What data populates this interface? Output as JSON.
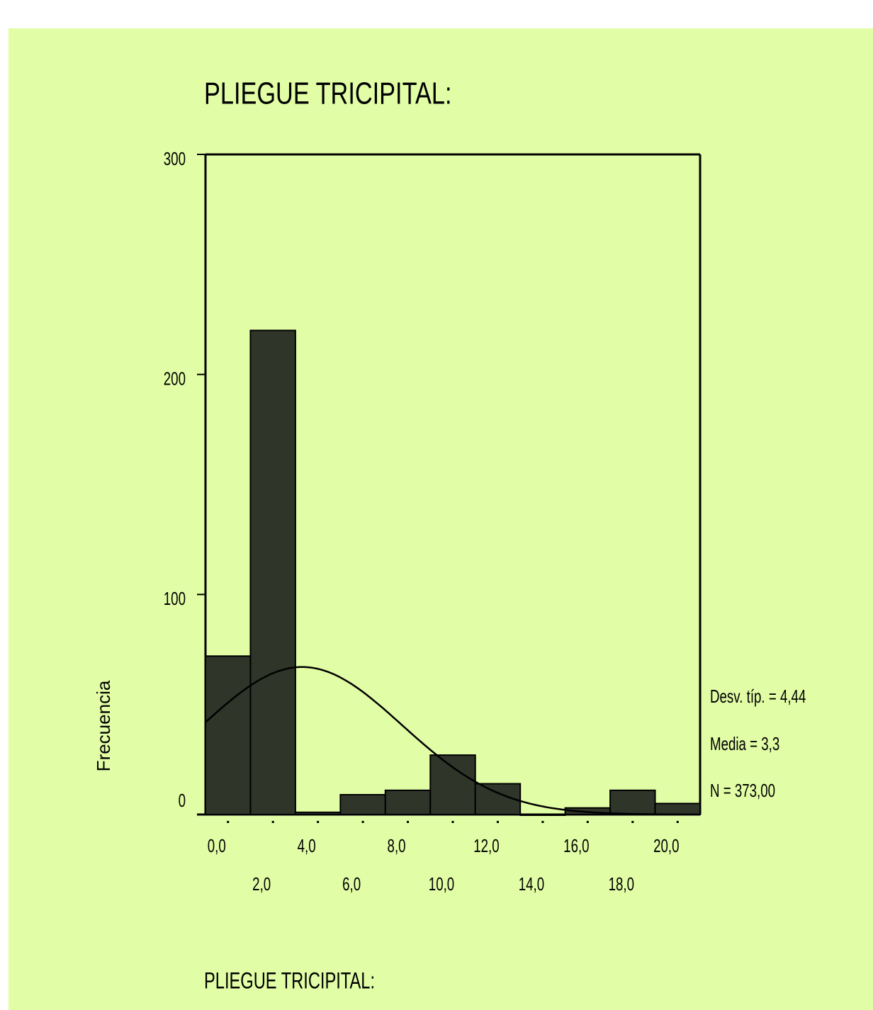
{
  "chart_data": {
    "type": "histogram",
    "title": "PLIEGUE TRICIPITAL:",
    "x_label": "PLIEGUE TRICIPITAL:",
    "y_label": "Frecuencia",
    "bins": [
      -1,
      1,
      3,
      5,
      7,
      9,
      11,
      13,
      15,
      17,
      19,
      21
    ],
    "values": [
      72,
      220,
      1,
      9,
      11,
      27,
      14,
      0,
      3,
      11,
      5
    ],
    "color": "#30352a",
    "xlim": [
      -1,
      21
    ],
    "xticks": [
      {
        "value": 0,
        "label": "0,0"
      },
      {
        "value": 2,
        "label": "2,0"
      },
      {
        "value": 4,
        "label": "4,0"
      },
      {
        "value": 6,
        "label": "6,0"
      },
      {
        "value": 8,
        "label": "8,0"
      },
      {
        "value": 10,
        "label": "10,0"
      },
      {
        "value": 12,
        "label": "12,0"
      },
      {
        "value": 14,
        "label": "14,0"
      },
      {
        "value": 16,
        "label": "16,0"
      },
      {
        "value": 18,
        "label": "18,0"
      },
      {
        "value": 20,
        "label": "20,0"
      }
    ],
    "ylim": [
      0,
      300
    ],
    "yticks": [
      0,
      100,
      200,
      300
    ],
    "normal_curve": true,
    "stats": {
      "sd": {
        "value": 4.44,
        "label": "Desv. típ. = 4,44"
      },
      "mean": {
        "value": 3.3,
        "label": "Media = 3,3"
      },
      "n": {
        "value": 373,
        "label": "N = 373,00"
      }
    }
  }
}
